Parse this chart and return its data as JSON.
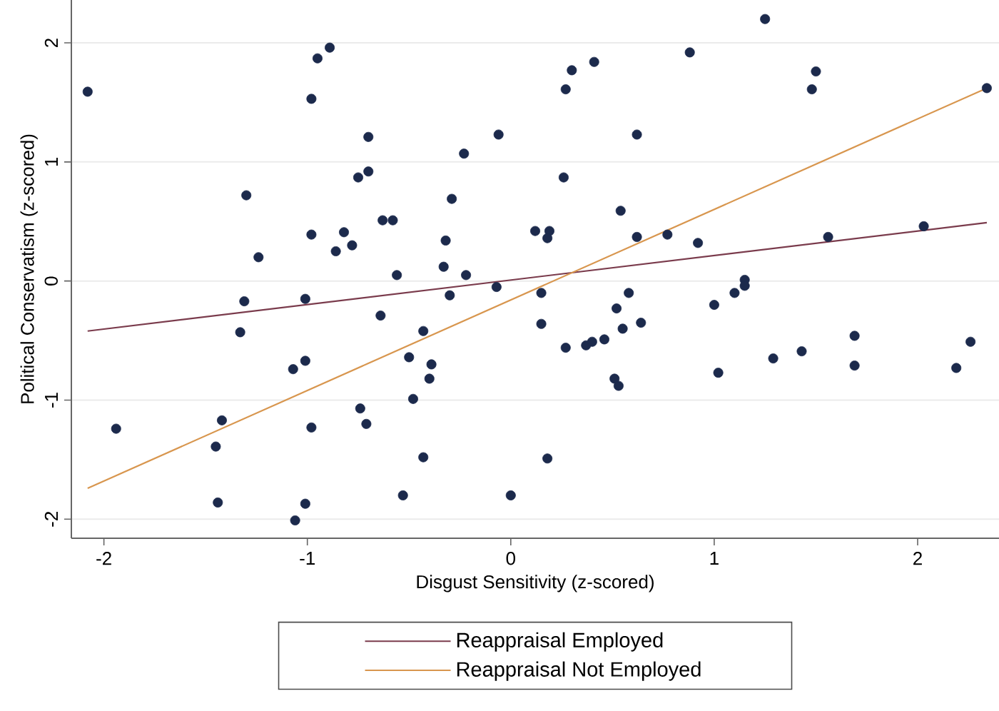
{
  "chart_data": {
    "type": "scatter",
    "xlabel": "Disgust Sensitivity (z-scored)",
    "ylabel": "Political Conservatism (z-scored)",
    "xlim": [
      -2.16,
      2.4
    ],
    "ylim": [
      -2.16,
      2.36
    ],
    "xticks": [
      -2,
      -1,
      0,
      1,
      2
    ],
    "yticks": [
      -2,
      -1,
      0,
      1,
      2
    ],
    "grid": "y",
    "legend": "bottom",
    "series": [
      {
        "type": "scatter",
        "color": "#1c2a4c",
        "marker": "circle",
        "x": [
          -2.08,
          -0.95,
          -0.89,
          -0.98,
          -0.7,
          -0.06,
          -0.23,
          -0.75,
          -0.7,
          -1.3,
          -0.29,
          -0.63,
          -0.58,
          -0.98,
          -0.82,
          -0.86,
          -0.78,
          -1.24,
          -0.32,
          -0.33,
          -0.56,
          -0.22,
          1.25,
          0.88,
          0.41,
          0.3,
          0.27,
          1.5,
          1.48,
          2.34,
          0.62,
          0.26,
          0.54,
          0.12,
          0.19,
          0.18,
          0.62,
          0.77,
          0.92,
          1.56,
          2.03,
          1.15,
          -1.31,
          -1.01,
          -0.3,
          -0.07,
          -0.64,
          -1.33,
          -0.43,
          -0.5,
          -0.39,
          -0.4,
          -0.48,
          -1.07,
          -1.01,
          -0.74,
          -0.71,
          -0.98,
          -1.94,
          -1.42,
          -1.45,
          -0.43,
          -1.44,
          -0.53,
          -1.01,
          -1.06,
          0.0,
          0.15,
          0.15,
          0.27,
          0.37,
          0.4,
          0.46,
          0.55,
          0.64,
          0.52,
          0.58,
          0.51,
          0.53,
          1.0,
          1.1,
          1.15,
          1.02,
          1.29,
          1.43,
          1.69,
          1.69,
          2.19,
          2.26,
          0.18
        ],
        "values": [
          1.59,
          1.87,
          1.96,
          1.53,
          1.21,
          1.23,
          1.07,
          0.87,
          0.92,
          0.72,
          0.69,
          0.51,
          0.51,
          0.39,
          0.41,
          0.25,
          0.3,
          0.2,
          0.34,
          0.12,
          0.05,
          0.05,
          2.2,
          1.92,
          1.84,
          1.77,
          1.61,
          1.76,
          1.61,
          1.62,
          1.23,
          0.87,
          0.59,
          0.42,
          0.42,
          0.36,
          0.37,
          0.39,
          0.32,
          0.37,
          0.46,
          0.01,
          -0.17,
          -0.15,
          -0.12,
          -0.05,
          -0.29,
          -0.43,
          -0.42,
          -0.64,
          -0.7,
          -0.82,
          -0.99,
          -0.74,
          -0.67,
          -1.07,
          -1.2,
          -1.23,
          -1.24,
          -1.17,
          -1.39,
          -1.48,
          -1.86,
          -1.8,
          -1.87,
          -2.01,
          -1.8,
          -0.1,
          -0.36,
          -0.56,
          -0.54,
          -0.51,
          -0.49,
          -0.4,
          -0.35,
          -0.23,
          -0.1,
          -0.82,
          -0.88,
          -0.2,
          -0.1,
          -0.04,
          -0.77,
          -0.65,
          -0.59,
          -0.46,
          -0.71,
          -0.73,
          -0.51,
          -1.49
        ]
      },
      {
        "type": "line",
        "name": "Reappraisal Employed",
        "color": "#7a3b4c",
        "line_style": "solid",
        "x": [
          -2.08,
          2.34
        ],
        "values": [
          -0.42,
          0.49
        ]
      },
      {
        "type": "line",
        "name": "Reappraisal Not Employed",
        "color": "#d8964e",
        "line_style": "solid",
        "x": [
          -2.08,
          2.34
        ],
        "values": [
          -1.74,
          1.62
        ]
      }
    ]
  }
}
